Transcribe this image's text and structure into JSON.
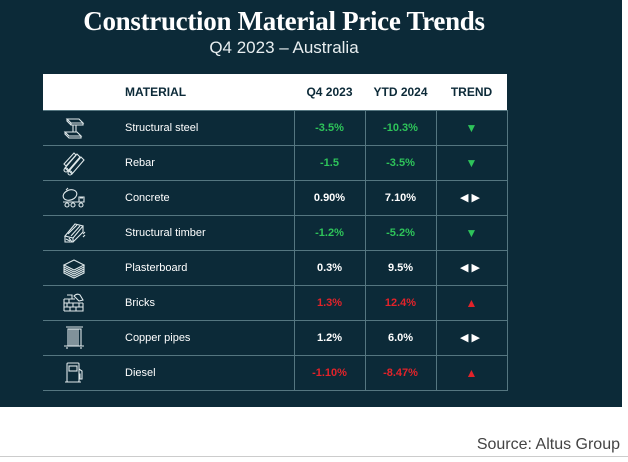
{
  "title": "Construction Material Price Trends",
  "subtitle": "Q4 2023 – Australia",
  "source": "Source: Altus Group",
  "colors": {
    "background": "#0c2a38",
    "decrease": "#2ec45a",
    "increase": "#e2232a",
    "neutral": "#ffffff"
  },
  "table": {
    "headers": {
      "material": "MATERIAL",
      "q4": "Q4 2023",
      "ytd": "YTD 2024",
      "trend": "TREND"
    },
    "rows": [
      {
        "icon": "steel-beam-icon",
        "material": "Structural steel",
        "q4": "-3.5%",
        "ytd": "-10.3%",
        "color": "green",
        "trend": "down",
        "trend_glyph": "▼"
      },
      {
        "icon": "rebar-icon",
        "material": "Rebar",
        "q4": "-1.5",
        "ytd": "-3.5%",
        "color": "green",
        "trend": "down",
        "trend_glyph": "▼"
      },
      {
        "icon": "concrete-mixer-icon",
        "material": "Concrete",
        "q4": "0.90%",
        "ytd": "7.10%",
        "color": "white",
        "trend": "flat",
        "trend_glyph": "◀▶"
      },
      {
        "icon": "timber-icon",
        "material": "Structural timber",
        "q4": "-1.2%",
        "ytd": "-5.2%",
        "color": "green",
        "trend": "down",
        "trend_glyph": "▼"
      },
      {
        "icon": "plasterboard-icon",
        "material": "Plasterboard",
        "q4": "0.3%",
        "ytd": "9.5%",
        "color": "white",
        "trend": "flat",
        "trend_glyph": "◀▶"
      },
      {
        "icon": "bricks-icon",
        "material": "Bricks",
        "q4": "1.3%",
        "ytd": "12.4%",
        "color": "red",
        "trend": "up",
        "trend_glyph": "▲"
      },
      {
        "icon": "copper-pipes-icon",
        "material": "Copper pipes",
        "q4": "1.2%",
        "ytd": "6.0%",
        "color": "white",
        "trend": "flat",
        "trend_glyph": "◀▶"
      },
      {
        "icon": "fuel-pump-icon",
        "material": "Diesel",
        "q4": "-1.10%",
        "ytd": "-8.47%",
        "color": "red",
        "trend": "up",
        "trend_glyph": "▲"
      }
    ]
  },
  "chart_data": {
    "type": "table",
    "title": "Construction Material Price Trends",
    "subtitle": "Q4 2023 – Australia",
    "columns": [
      "MATERIAL",
      "Q4 2023",
      "YTD 2024",
      "TREND"
    ],
    "categories": [
      "Structural steel",
      "Rebar",
      "Concrete",
      "Structural timber",
      "Plasterboard",
      "Bricks",
      "Copper pipes",
      "Diesel"
    ],
    "series": [
      {
        "name": "Q4 2023",
        "values": [
          "-3.5%",
          "-1.5",
          "0.90%",
          "-1.2%",
          "0.3%",
          "1.3%",
          "1.2%",
          "-1.10%"
        ]
      },
      {
        "name": "YTD 2024",
        "values": [
          "-10.3%",
          "-3.5%",
          "7.10%",
          "-5.2%",
          "9.5%",
          "12.4%",
          "6.0%",
          "-8.47%"
        ]
      },
      {
        "name": "TREND",
        "values": [
          "down",
          "down",
          "flat",
          "down",
          "flat",
          "up",
          "flat",
          "up"
        ]
      }
    ],
    "source": "Source: Altus Group"
  }
}
